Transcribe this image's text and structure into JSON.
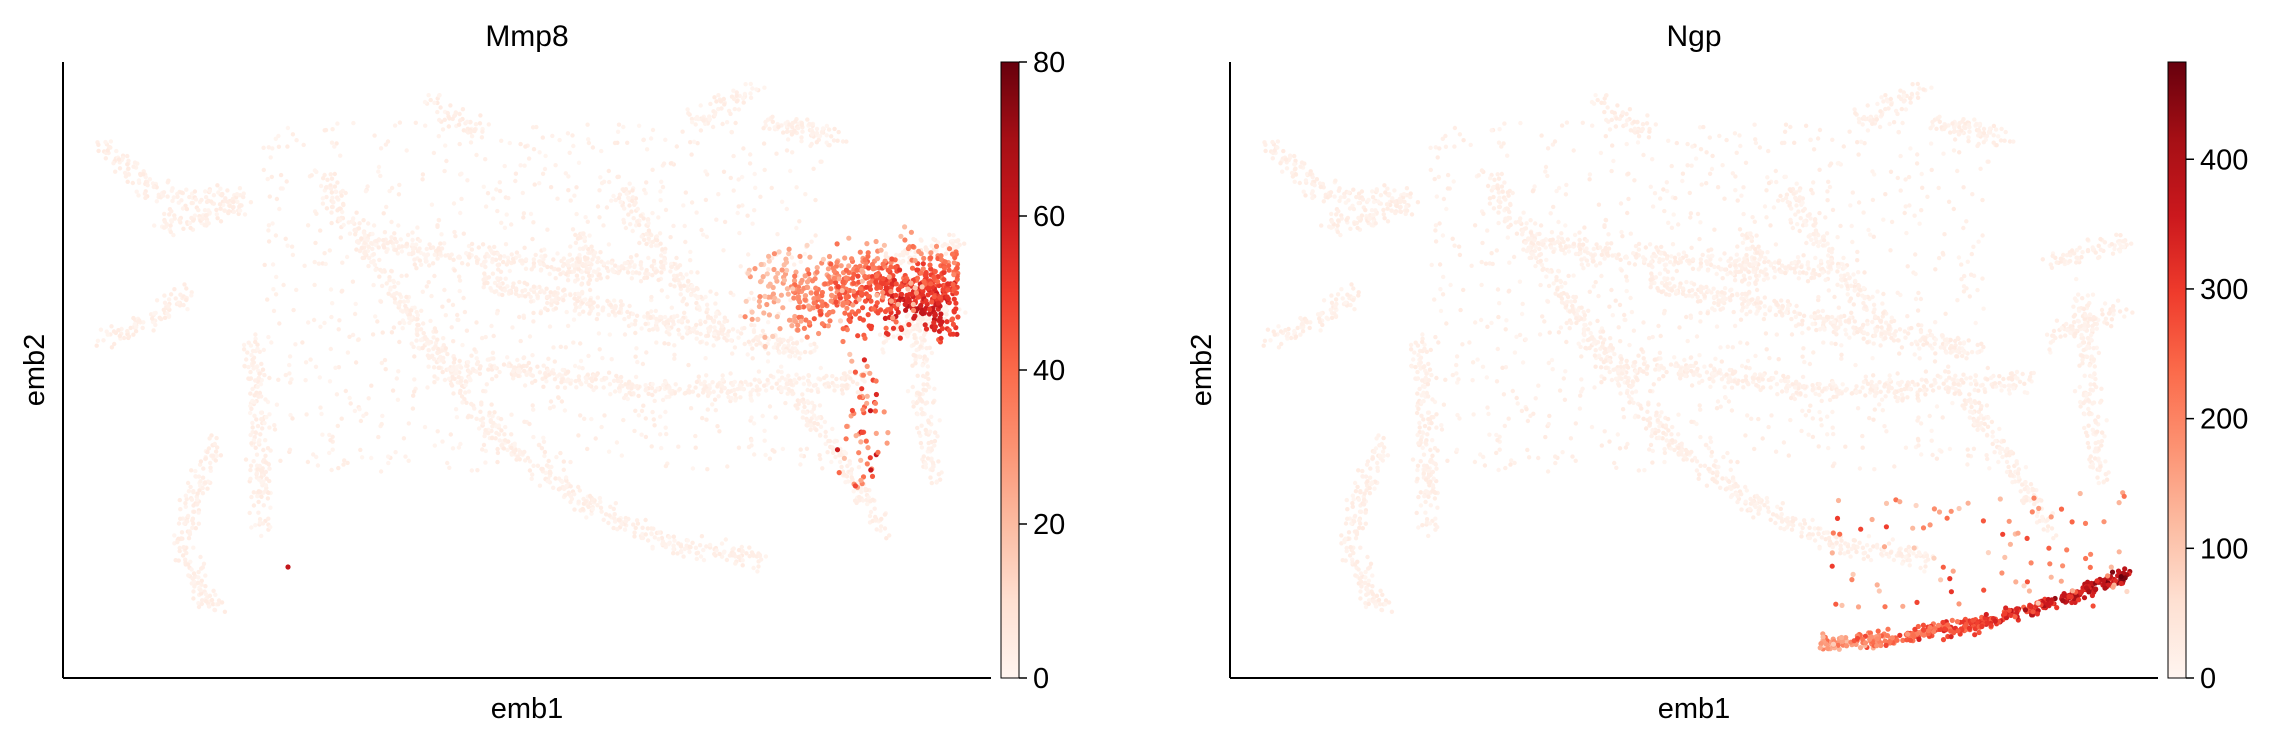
{
  "chart_data": [
    {
      "type": "scatter",
      "title": "Mmp8",
      "xlabel": "emb1",
      "ylabel": "emb2",
      "colormap": "Reds",
      "colorbar": {
        "ticks": [
          0,
          20,
          40,
          60,
          80
        ],
        "range": [
          0,
          80
        ]
      },
      "x_ticks": "none",
      "y_ticks": "none",
      "grid": false,
      "expression_hotspot": "right-middle lobe",
      "high_color": "#67000d",
      "low_color": "#fff5f0"
    },
    {
      "type": "scatter",
      "title": "Ngp",
      "xlabel": "emb1",
      "ylabel": "emb2",
      "colormap": "Reds",
      "colorbar": {
        "ticks": [
          0,
          100,
          200,
          300,
          400
        ],
        "range": [
          0,
          475
        ]
      },
      "x_ticks": "none",
      "y_ticks": "none",
      "grid": false,
      "expression_hotspot": "bottom-right arc",
      "high_color": "#67000d",
      "low_color": "#fff5f0"
    }
  ]
}
